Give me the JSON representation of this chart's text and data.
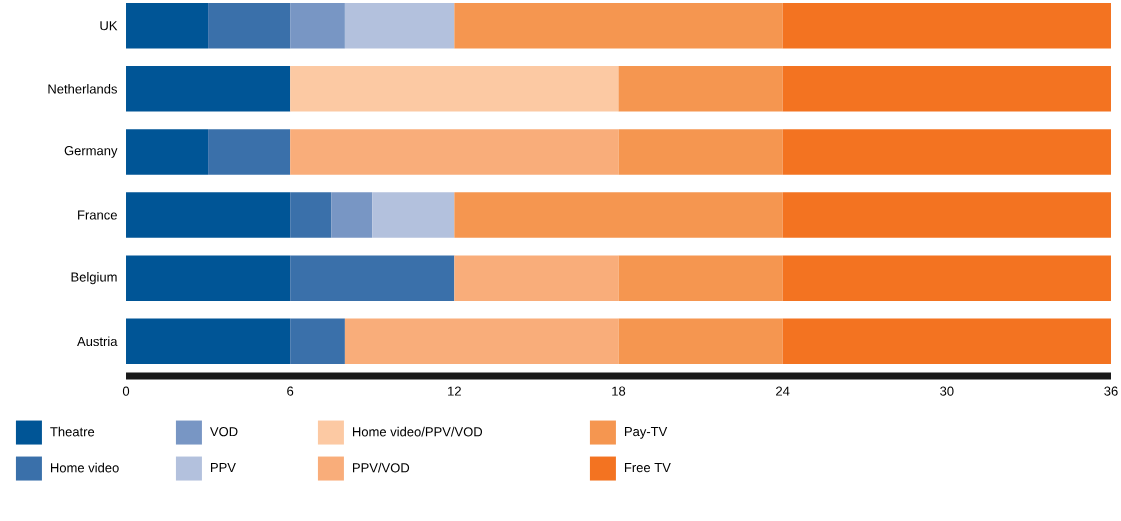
{
  "chart_data": {
    "type": "bar",
    "orientation": "horizontal",
    "stacked": true,
    "categories": [
      "UK",
      "Netherlands",
      "Germany",
      "France",
      "Belgium",
      "Austria"
    ],
    "series": [
      {
        "name": "Theatre",
        "color": "#005596",
        "values": [
          3,
          6,
          3,
          6,
          6,
          6
        ]
      },
      {
        "name": "Home video",
        "color": "#3a70aa",
        "values": [
          3,
          null,
          3,
          1.5,
          6,
          2
        ]
      },
      {
        "name": "VOD",
        "color": "#7896c4",
        "values": [
          2,
          null,
          null,
          1.5,
          null,
          null
        ]
      },
      {
        "name": "PPV",
        "color": "#b3c1dd",
        "values": [
          4,
          null,
          null,
          3,
          null,
          null
        ]
      },
      {
        "name": "Home video/PPV/VOD",
        "color": "#fcc9a3",
        "values": [
          null,
          12,
          null,
          null,
          null,
          null
        ]
      },
      {
        "name": "PPV/VOD",
        "color": "#f9ad7a",
        "values": [
          null,
          null,
          12,
          null,
          6,
          10
        ]
      },
      {
        "name": "Pay-TV",
        "color": "#f59650",
        "values": [
          12,
          6,
          6,
          12,
          6,
          6
        ]
      },
      {
        "name": "Free TV",
        "color": "#f37321",
        "values": [
          12,
          12,
          12,
          12,
          12,
          12
        ]
      }
    ],
    "xlim": [
      0,
      36
    ],
    "xticks": [
      0,
      6,
      12,
      18,
      24,
      30,
      36
    ],
    "grid": false,
    "legend": "bottom"
  }
}
